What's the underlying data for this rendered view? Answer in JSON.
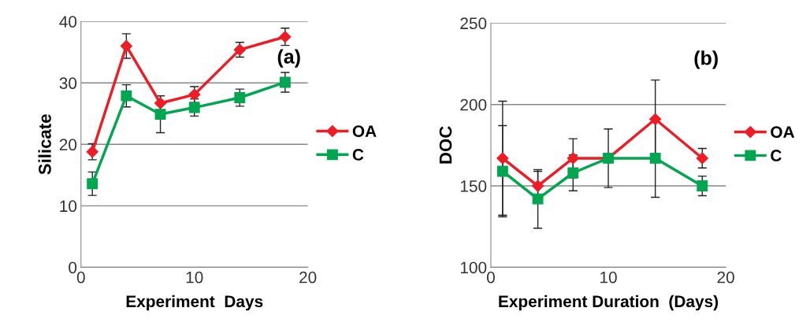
{
  "chart_data": [
    {
      "type": "line",
      "xlabel": "Experiment  Days",
      "ylabel": "Silicate",
      "annotations": [
        "(a)"
      ],
      "x": [
        1,
        4,
        7,
        10,
        14,
        18
      ],
      "xlim": [
        0,
        20
      ],
      "xticks": [
        0,
        10,
        20
      ],
      "ylim": [
        0,
        40
      ],
      "yticks": [
        0,
        10,
        20,
        30,
        40
      ],
      "grid": "y",
      "legend": "right",
      "series": [
        {
          "name": "OA",
          "color": "#ee1c25",
          "marker": "diamond",
          "values": [
            18.8,
            36.0,
            26.7,
            28.1,
            35.4,
            37.5
          ],
          "errors": [
            1.3,
            2.0,
            1.2,
            1.3,
            1.2,
            1.4
          ]
        },
        {
          "name": "C",
          "color": "#00a650",
          "marker": "square",
          "values": [
            13.6,
            27.9,
            24.9,
            26.0,
            27.6,
            30.1
          ],
          "errors": [
            1.9,
            1.8,
            3.0,
            1.4,
            1.4,
            1.6
          ]
        }
      ]
    },
    {
      "type": "line",
      "xlabel": "Experiment Duration  (Days)",
      "ylabel": "DOC",
      "annotations": [
        "(b)"
      ],
      "x": [
        1,
        4,
        7,
        10,
        14,
        18
      ],
      "xlim": [
        0,
        20
      ],
      "xticks": [
        0,
        10,
        20
      ],
      "ylim": [
        100,
        250
      ],
      "yticks": [
        100,
        150,
        200,
        250
      ],
      "grid": "y",
      "legend": "right",
      "series": [
        {
          "name": "OA",
          "color": "#ee1c25",
          "marker": "diamond",
          "values": [
            167,
            150,
            167,
            167,
            191,
            167
          ],
          "errors": [
            35,
            9,
            12,
            18,
            24,
            6
          ]
        },
        {
          "name": "C",
          "color": "#00a650",
          "marker": "square",
          "values": [
            159,
            142,
            158,
            167,
            167,
            150
          ],
          "errors": [
            28,
            18,
            11,
            null,
            24,
            6
          ]
        }
      ]
    }
  ]
}
